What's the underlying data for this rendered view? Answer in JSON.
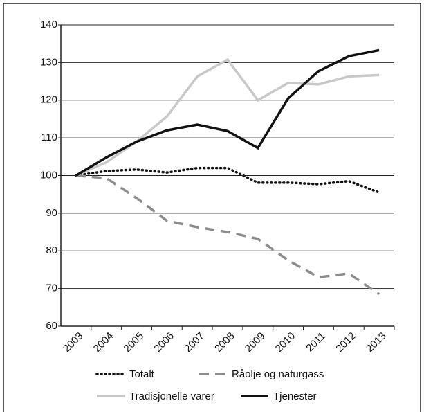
{
  "chart_data": {
    "type": "line",
    "categories": [
      "2003",
      "2004",
      "2005",
      "2006",
      "2007",
      "2008",
      "2009",
      "2010",
      "2011",
      "2012",
      "2013"
    ],
    "series": [
      {
        "name": "Totalt",
        "color": "#111111",
        "style": "dotted",
        "values": [
          100,
          101.2,
          101.6,
          100.8,
          102,
          102,
          98.1,
          98.1,
          97.7,
          98.5,
          95.5
        ]
      },
      {
        "name": "Råolje og naturgass",
        "color": "#8c8c8c",
        "style": "dashed",
        "values": [
          100,
          99.3,
          94,
          88,
          86.3,
          85,
          83.2,
          77.5,
          73,
          74,
          68.5
        ]
      },
      {
        "name": "Tradisjonelle varer",
        "color": "#c8c8c8",
        "style": "solid",
        "values": [
          100,
          103.5,
          109,
          115.7,
          126.3,
          130.8,
          120,
          124.6,
          124.2,
          126.3,
          126.7
        ]
      },
      {
        "name": "Tjenester",
        "color": "#111111",
        "style": "solid",
        "values": [
          100,
          104.8,
          109,
          112,
          113.5,
          111.8,
          107.3,
          120.5,
          127.7,
          131.7,
          133.3
        ]
      }
    ],
    "ylim": [
      60,
      140
    ],
    "yticks": [
      60,
      70,
      80,
      90,
      100,
      110,
      120,
      130,
      140
    ],
    "grid": true
  }
}
